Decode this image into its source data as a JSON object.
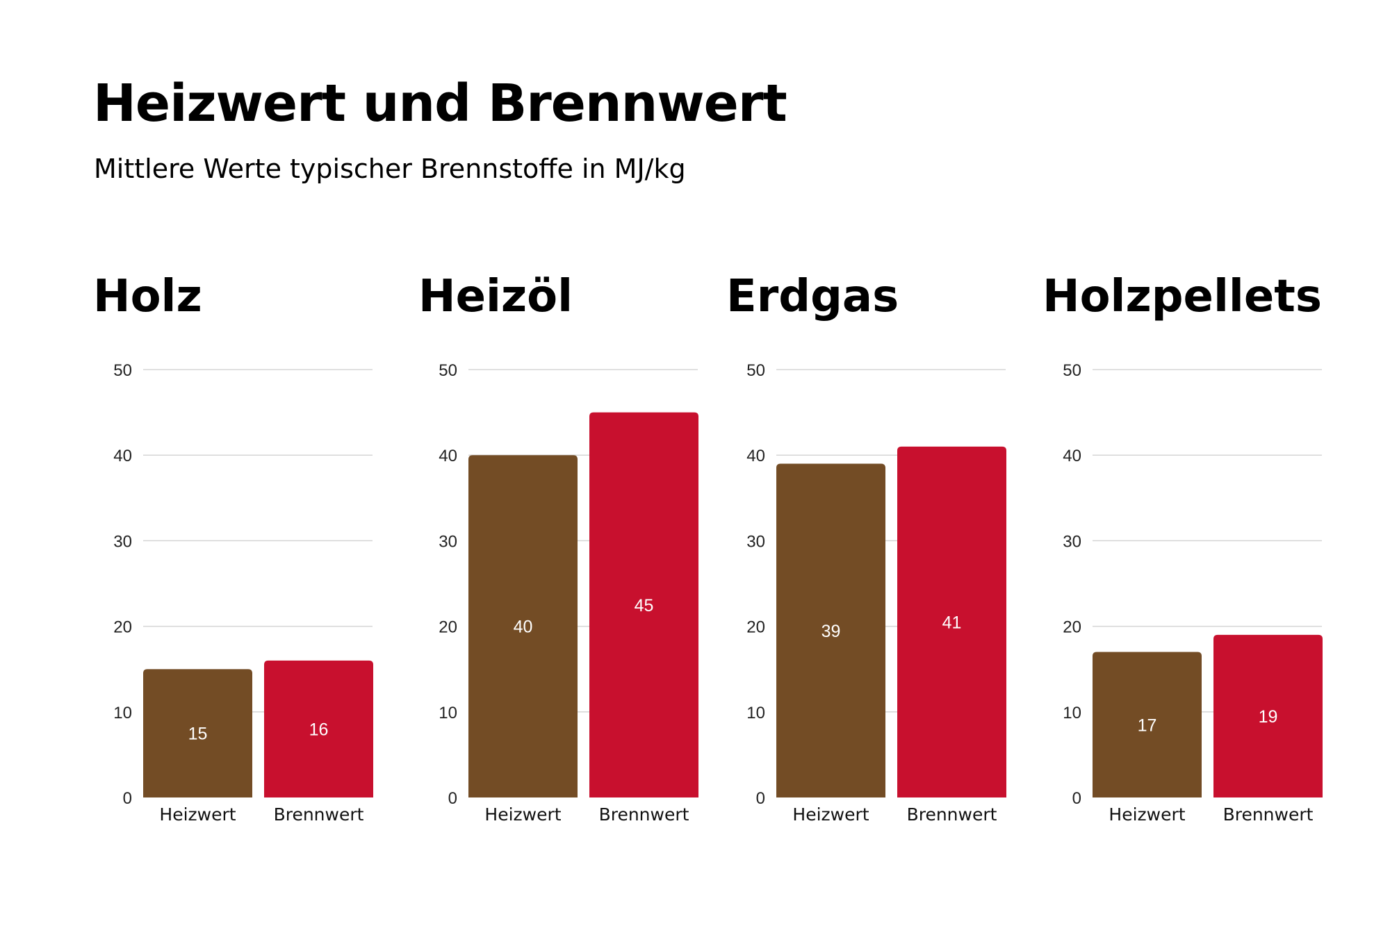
{
  "header": {
    "title": "Heizwert und Brennwert",
    "subtitle": "Mittlere Werte typischer Brennstoffe in MJ/kg"
  },
  "colors": {
    "heizwert": "#734c25",
    "brennwert": "#c8102e",
    "grid": "#d5d5d5"
  },
  "chart_data": [
    {
      "type": "bar",
      "title": "Holz",
      "categories": [
        "Heizwert",
        "Brennwert"
      ],
      "values": [
        15,
        16
      ],
      "ylim": [
        0,
        50
      ],
      "yticks": [
        0,
        10,
        20,
        30,
        40,
        50
      ],
      "grid": true,
      "data_labels": true
    },
    {
      "type": "bar",
      "title": "Heizöl",
      "categories": [
        "Heizwert",
        "Brennwert"
      ],
      "values": [
        40,
        45
      ],
      "ylim": [
        0,
        50
      ],
      "yticks": [
        0,
        10,
        20,
        30,
        40,
        50
      ],
      "grid": true,
      "data_labels": true
    },
    {
      "type": "bar",
      "title": "Erdgas",
      "categories": [
        "Heizwert",
        "Brennwert"
      ],
      "values": [
        39,
        41
      ],
      "ylim": [
        0,
        50
      ],
      "yticks": [
        0,
        10,
        20,
        30,
        40,
        50
      ],
      "grid": true,
      "data_labels": true
    },
    {
      "type": "bar",
      "title": "Holzpellets",
      "categories": [
        "Heizwert",
        "Brennwert"
      ],
      "values": [
        17,
        19
      ],
      "ylim": [
        0,
        50
      ],
      "yticks": [
        0,
        10,
        20,
        30,
        40,
        50
      ],
      "grid": true,
      "data_labels": true
    }
  ]
}
